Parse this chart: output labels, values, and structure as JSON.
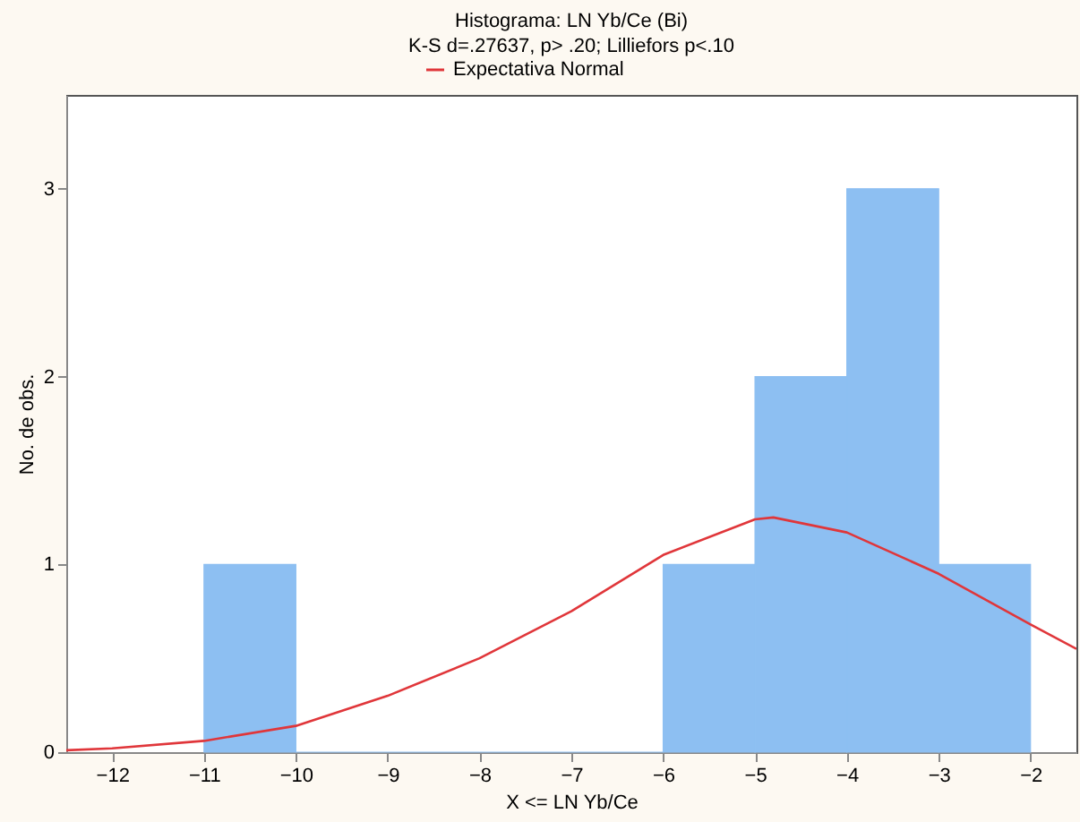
{
  "chart_data": {
    "type": "histogram",
    "title": "Histograma: LN Yb/Ce (Bi)",
    "subtitle": "K-S d=.27637, p> .20; Lilliefors p<.10",
    "xlabel": "X <= LN Yb/Ce",
    "ylabel": "No. de obs.",
    "bins": [
      -11,
      -10,
      -9,
      -8,
      -7,
      -6,
      -5,
      -4,
      -3,
      -2
    ],
    "values": [
      1,
      0,
      0,
      0,
      0,
      1,
      2,
      3,
      1
    ],
    "color": "#8dbff2",
    "series": [
      {
        "type": "line",
        "name": "Expectativa Normal",
        "color": "#e0363a",
        "x": [
          -12.5,
          -12,
          -11,
          -10,
          -9,
          -8,
          -7,
          -6,
          -5,
          -4.8,
          -4,
          -3,
          -2,
          -1.5
        ],
        "values": [
          0.01,
          0.02,
          0.06,
          0.14,
          0.3,
          0.5,
          0.75,
          1.05,
          1.24,
          1.25,
          1.17,
          0.95,
          0.68,
          0.55
        ]
      }
    ],
    "xlim": [
      -12.5,
      -1.5
    ],
    "xticks": [
      -12,
      -11,
      -10,
      -9,
      -8,
      -7,
      -6,
      -5,
      -4,
      -3,
      -2
    ],
    "ylim": [
      0,
      3.5
    ],
    "yticks": [
      {
        "value": 0,
        "label": "0"
      },
      {
        "value": 1,
        "label": "1"
      },
      {
        "value": 2,
        "label": "2"
      },
      {
        "value": 3,
        "label": "3"
      }
    ],
    "legend": "top",
    "grid": false
  }
}
